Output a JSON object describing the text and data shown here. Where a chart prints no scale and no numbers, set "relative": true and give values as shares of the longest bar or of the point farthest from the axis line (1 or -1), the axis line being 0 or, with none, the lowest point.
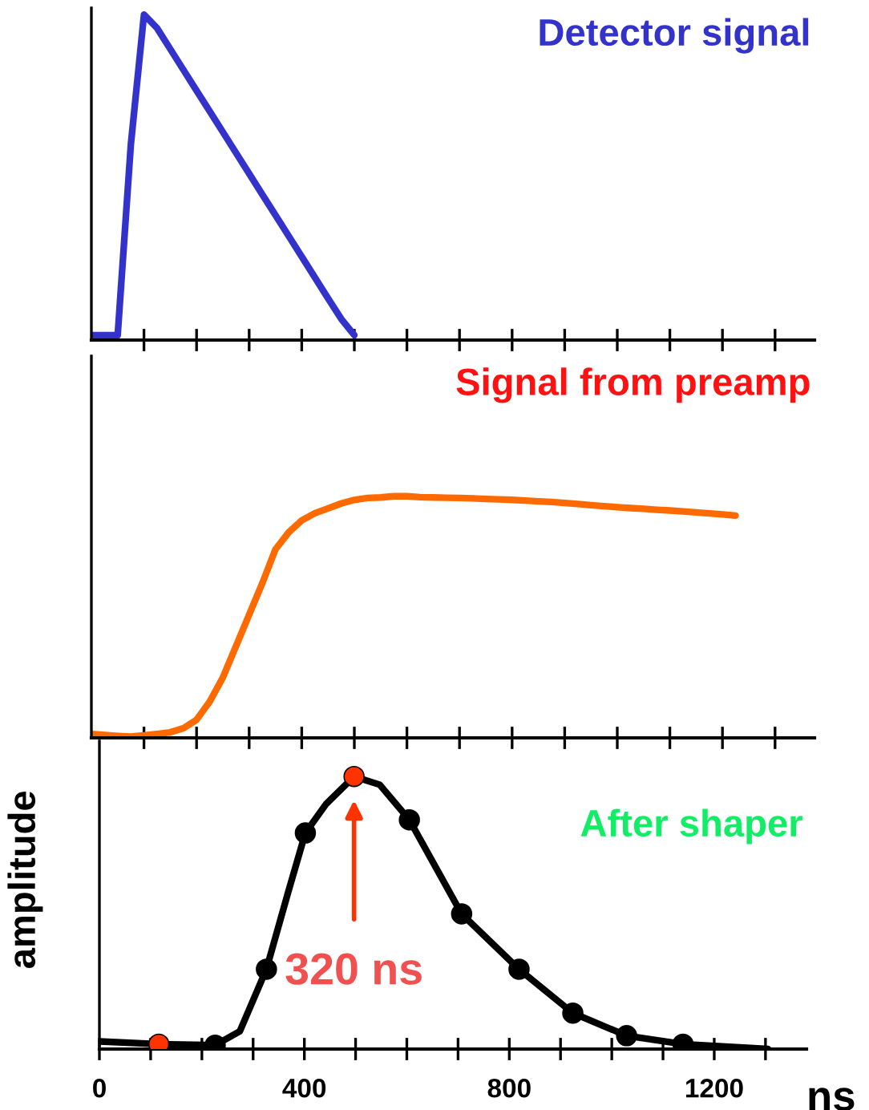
{
  "chart_data": [
    {
      "type": "line",
      "title": "Detector signal",
      "relative": true,
      "categories": [
        null,
        null,
        null,
        null,
        null,
        null,
        null,
        null,
        null,
        null,
        null,
        null,
        null,
        null,
        null,
        null,
        null,
        null,
        null,
        null,
        null,
        null,
        null,
        null,
        null,
        null,
        null,
        null,
        null,
        null,
        null,
        null,
        null,
        null,
        null,
        null,
        null,
        null,
        null,
        null,
        null,
        null,
        null,
        null,
        null,
        null,
        null,
        null,
        null,
        null,
        null,
        null,
        null,
        null,
        null,
        null
      ],
      "tick_labels": false,
      "grid": false,
      "legend": false,
      "marker": "none",
      "line_style": "solid",
      "series": [
        {
          "color": "#3333cc",
          "values": [
            0.015,
            0.015,
            0.015,
            0.6,
            1.0,
            0.958,
            0.894,
            0.83,
            0.766,
            0.703,
            0.639,
            0.575,
            0.511,
            0.447,
            0.384,
            0.32,
            0.256,
            0.192,
            0.128,
            0.065,
            0.015,
            null,
            null,
            null,
            null,
            null,
            null,
            null,
            null,
            null,
            null,
            null,
            null,
            null,
            null,
            null,
            null,
            null,
            null,
            null,
            null,
            null,
            null,
            null,
            null,
            null,
            null,
            null,
            null,
            null,
            null,
            null,
            null,
            null,
            null,
            null
          ]
        }
      ]
    },
    {
      "type": "line",
      "title": "Signal from preamp",
      "relative": true,
      "categories": [
        null,
        null,
        null,
        null,
        null,
        null,
        null,
        null,
        null,
        null,
        null,
        null,
        null,
        null,
        null,
        null,
        null,
        null,
        null,
        null,
        null,
        null,
        null,
        null,
        null,
        null,
        null,
        null,
        null,
        null,
        null,
        null,
        null,
        null,
        null,
        null,
        null,
        null,
        null,
        null,
        null,
        null,
        null,
        null,
        null,
        null,
        null,
        null,
        null,
        null,
        null,
        null,
        null,
        null,
        null,
        null
      ],
      "tick_labels": false,
      "grid": false,
      "legend": false,
      "marker": "none",
      "line_style": "solid",
      "series": [
        {
          "color": "#ff6a00",
          "values": [
            0.016,
            0.012,
            0.008,
            0.005,
            0.01,
            0.016,
            0.023,
            0.04,
            0.075,
            0.15,
            0.25,
            0.38,
            0.51,
            0.64,
            0.78,
            0.85,
            0.9,
            0.93,
            0.95,
            0.97,
            0.985,
            0.993,
            0.995,
            1.0,
            1.0,
            0.996,
            0.995,
            0.994,
            0.993,
            0.991,
            0.989,
            0.987,
            0.985,
            0.982,
            0.979,
            0.976,
            0.972,
            0.968,
            0.963,
            0.959,
            0.955,
            0.951,
            0.948,
            0.944,
            0.941,
            0.937,
            0.933,
            0.929,
            0.925,
            0.92,
            null,
            null,
            null,
            null,
            null,
            null
          ]
        }
      ]
    },
    {
      "type": "line",
      "title": "After shaper",
      "xlabel": "ns",
      "ylabel": "amplitude",
      "relative": true,
      "xlim": [
        0,
        1380
      ],
      "xticks": [
        0,
        {
          "value": 100,
          "label": null
        },
        {
          "value": 200,
          "label": null
        },
        {
          "value": 300,
          "label": null
        },
        400,
        {
          "value": 500,
          "label": null
        },
        {
          "value": 600,
          "label": null
        },
        {
          "value": 700,
          "label": null
        },
        800,
        {
          "value": 900,
          "label": null
        },
        {
          "value": 1000,
          "label": null
        },
        {
          "value": 1100,
          "label": null
        },
        1200,
        {
          "value": 1300,
          "label": null
        }
      ],
      "tick_labels": "x",
      "grid": false,
      "legend": false,
      "line_style": "solid",
      "annotations": [
        "320 ns"
      ],
      "series": [
        {
          "type": "line",
          "color": "#000000",
          "marker": "none",
          "x": [
            0,
            116,
            226,
            274,
            326,
            368,
            402,
            442,
            497,
            547,
            605,
            707,
            819,
            924,
            1029,
            1139,
            1305
          ],
          "values": [
            0.028,
            0.018,
            0.014,
            0.065,
            0.293,
            0.573,
            0.793,
            0.898,
            1.0,
            0.97,
            0.841,
            0.496,
            0.293,
            0.132,
            0.049,
            0.018,
            0.0
          ]
        },
        {
          "type": "scatter",
          "marker": "circle",
          "x": [
            116,
            226,
            326,
            402,
            497,
            605,
            707,
            819,
            924,
            1029,
            1139
          ],
          "values": [
            0.018,
            0.014,
            0.293,
            0.793,
            1.0,
            0.841,
            0.496,
            0.293,
            0.132,
            0.049,
            0.018
          ],
          "colors": [
            "#ff3300",
            "#000000",
            "#000000",
            "#000000",
            "#ff3300",
            "#000000",
            "#000000",
            "#000000",
            "#000000",
            "#000000",
            "#000000"
          ]
        }
      ]
    }
  ]
}
